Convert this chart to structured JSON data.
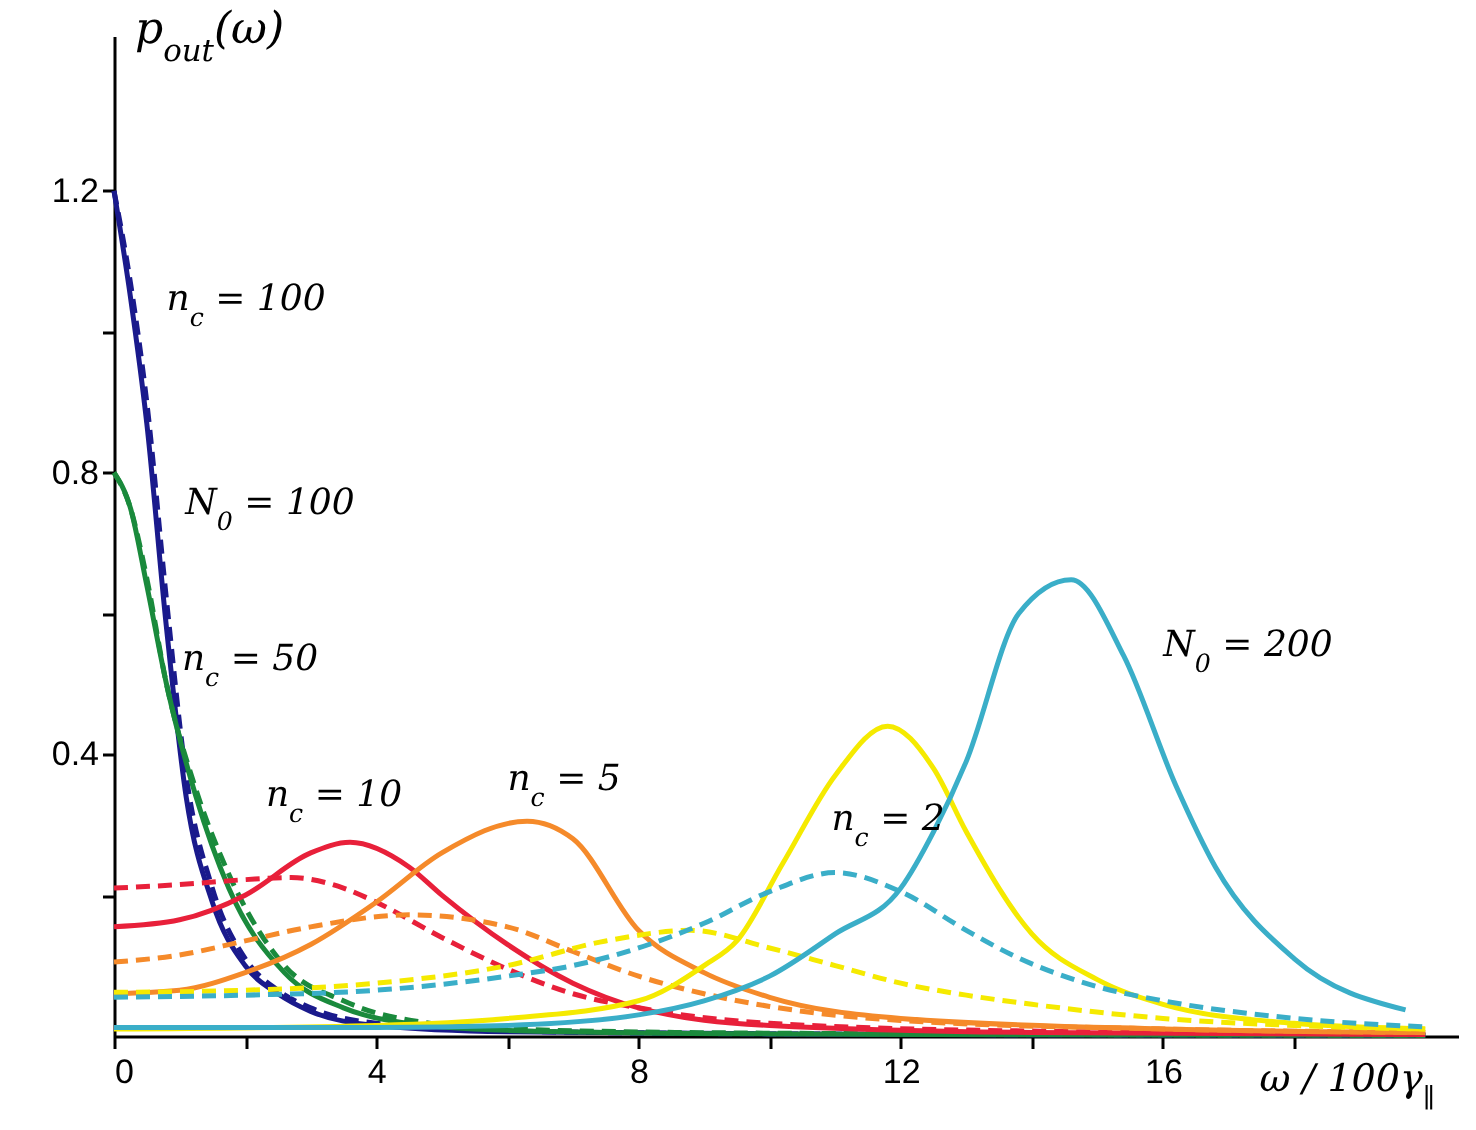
{
  "chart_data": {
    "type": "line",
    "xlabel": "ω / 100γ$_{∥}$",
    "ylabel": "p$_{out}$(ω)",
    "xlim": [
      0,
      20.5
    ],
    "ylim": [
      0,
      1.42
    ],
    "xticks": [
      0,
      {
        "value": 2,
        "label": null
      },
      4,
      {
        "value": 6,
        "label": null
      },
      8,
      {
        "value": 10,
        "label": null
      },
      12,
      {
        "value": 14,
        "label": null
      },
      16,
      {
        "value": 18,
        "label": null
      }
    ],
    "yticks": [
      {
        "value": 0.2,
        "label": null
      },
      0.4,
      {
        "value": 0.6,
        "label": null
      },
      0.8,
      {
        "value": 1.0,
        "label": null
      },
      1.2
    ],
    "grid": false,
    "marker": "none",
    "annotations": [
      "n$_{c}$ = 100",
      "N$_{0}$ = 100",
      "n$_{c}$ = 50",
      "n$_{c}$ = 10",
      "n$_{c}$ = 5",
      "n$_{c}$ = 2",
      "N$_{0}$ = 200"
    ],
    "series": [
      {
        "color": "#1a1a8c",
        "line_style": "solid",
        "x": [
          0,
          0.25,
          0.5,
          0.8,
          1.1,
          1.5,
          2,
          2.5,
          3,
          4,
          6,
          10,
          20
        ],
        "values": [
          1.2,
          1.05,
          0.87,
          0.58,
          0.34,
          0.19,
          0.1,
          0.06,
          0.035,
          0.015,
          0.006,
          0.003,
          0.001
        ]
      },
      {
        "color": "#1a1a8c",
        "line_style": "dashed",
        "x": [
          0,
          0.25,
          0.5,
          0.8,
          1.1,
          1.5,
          2,
          2.5,
          3,
          4,
          6,
          10,
          20
        ],
        "values": [
          1.2,
          1.07,
          0.9,
          0.62,
          0.37,
          0.21,
          0.11,
          0.065,
          0.04,
          0.018,
          0.007,
          0.003,
          0.001
        ]
      },
      {
        "color": "#1a8a3c",
        "line_style": "solid",
        "x": [
          0,
          0.25,
          0.5,
          0.8,
          1.25,
          1.75,
          2.6,
          3.5,
          4.2,
          6,
          10,
          20
        ],
        "values": [
          0.8,
          0.75,
          0.64,
          0.5,
          0.34,
          0.21,
          0.09,
          0.04,
          0.022,
          0.008,
          0.003,
          0.001
        ]
      },
      {
        "color": "#1a8a3c",
        "line_style": "dashed",
        "x": [
          0,
          0.25,
          0.5,
          0.8,
          1.25,
          1.75,
          2.6,
          3.5,
          4.2,
          6,
          10,
          20
        ],
        "values": [
          0.8,
          0.75,
          0.65,
          0.5,
          0.35,
          0.23,
          0.1,
          0.05,
          0.028,
          0.01,
          0.004,
          0.001
        ]
      },
      {
        "color": "#e8203a",
        "line_style": "solid",
        "x": [
          0,
          1,
          2,
          3,
          3.6,
          4.5,
          5,
          6,
          7,
          8,
          10,
          14,
          20
        ],
        "values": [
          0.155,
          0.165,
          0.2,
          0.26,
          0.275,
          0.24,
          0.2,
          0.13,
          0.075,
          0.04,
          0.015,
          0.005,
          0.002
        ]
      },
      {
        "color": "#e8203a",
        "line_style": "dashed",
        "x": [
          0,
          1,
          2,
          2.7,
          3.5,
          4,
          5,
          6,
          7,
          8,
          10,
          14,
          20
        ],
        "values": [
          0.21,
          0.215,
          0.222,
          0.225,
          0.21,
          0.19,
          0.14,
          0.095,
          0.06,
          0.04,
          0.018,
          0.007,
          0.003
        ]
      },
      {
        "color": "#f58a2a",
        "line_style": "solid",
        "x": [
          0,
          1,
          2,
          3,
          4,
          5,
          6.3,
          7,
          8,
          9,
          10,
          12,
          16,
          20
        ],
        "values": [
          0.06,
          0.065,
          0.09,
          0.13,
          0.19,
          0.26,
          0.305,
          0.28,
          0.15,
          0.09,
          0.055,
          0.025,
          0.01,
          0.005
        ]
      },
      {
        "color": "#f58a2a",
        "line_style": "dashed",
        "x": [
          0,
          1,
          2,
          3,
          4.5,
          6,
          7,
          8,
          9,
          10,
          12,
          16,
          20
        ],
        "values": [
          0.105,
          0.115,
          0.135,
          0.155,
          0.172,
          0.155,
          0.12,
          0.085,
          0.06,
          0.042,
          0.022,
          0.01,
          0.005
        ]
      },
      {
        "color": "#f5ea00",
        "line_style": "solid",
        "x": [
          0,
          4,
          6,
          8,
          9,
          9.5,
          10.2,
          11,
          11.8,
          12.5,
          13,
          14,
          15,
          16,
          18,
          20
        ],
        "values": [
          0.01,
          0.015,
          0.025,
          0.05,
          0.1,
          0.135,
          0.245,
          0.37,
          0.44,
          0.38,
          0.29,
          0.145,
          0.08,
          0.045,
          0.018,
          0.01
        ]
      },
      {
        "color": "#f5ea00",
        "line_style": "dashed",
        "x": [
          0,
          2,
          4,
          6,
          7.5,
          8.8,
          10,
          11,
          12,
          13,
          14,
          16,
          18,
          20
        ],
        "values": [
          0.062,
          0.065,
          0.075,
          0.1,
          0.135,
          0.15,
          0.125,
          0.1,
          0.075,
          0.058,
          0.045,
          0.025,
          0.015,
          0.01
        ]
      },
      {
        "color": "#3aaec8",
        "line_style": "solid",
        "x": [
          0,
          4,
          6,
          8,
          9,
          10,
          11,
          12,
          12.5,
          13,
          13.8,
          14.6,
          15.4,
          16.2,
          16.8,
          18,
          19.7
        ],
        "values": [
          0.012,
          0.012,
          0.015,
          0.03,
          0.05,
          0.085,
          0.145,
          0.21,
          0.29,
          0.39,
          0.6,
          0.648,
          0.54,
          0.355,
          0.24,
          0.11,
          0.037
        ]
      },
      {
        "color": "#3aaec8",
        "line_style": "dashed",
        "x": [
          0,
          2,
          4,
          6,
          7,
          8,
          9,
          10,
          11,
          12,
          13,
          13.7,
          15,
          16,
          18,
          20
        ],
        "values": [
          0.055,
          0.058,
          0.065,
          0.085,
          0.1,
          0.125,
          0.16,
          0.205,
          0.232,
          0.205,
          0.15,
          0.115,
          0.07,
          0.05,
          0.025,
          0.013
        ]
      }
    ]
  }
}
